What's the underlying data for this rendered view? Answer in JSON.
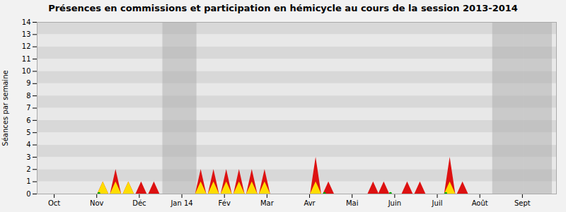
{
  "chart_data": {
    "type": "area",
    "title": "Présences en commissions et participation en hémicycle au cours de la session 2013-2014",
    "ylabel": "Séances par semaine",
    "xlim": [
      -0.4,
      11.8
    ],
    "xticks": [
      {
        "value": 0,
        "label": "Oct"
      },
      {
        "value": 1,
        "label": "Nov"
      },
      {
        "value": 2,
        "label": "Déc"
      },
      {
        "value": 3,
        "label": "Jan 14"
      },
      {
        "value": 4,
        "label": "Fév"
      },
      {
        "value": 5,
        "label": "Mar"
      },
      {
        "value": 6,
        "label": "Avr"
      },
      {
        "value": 7,
        "label": "Mai"
      },
      {
        "value": 8,
        "label": "Juin"
      },
      {
        "value": 9,
        "label": "Juil"
      },
      {
        "value": 10,
        "label": "Août"
      },
      {
        "value": 11,
        "label": "Sept"
      }
    ],
    "ylim": [
      0,
      14
    ],
    "yticks": [
      0,
      1,
      2,
      3,
      4,
      5,
      6,
      7,
      8,
      9,
      10,
      11,
      12,
      13,
      14
    ],
    "grid": false,
    "x": [
      1.15,
      1.45,
      1.75,
      2.05,
      2.35,
      3.45,
      3.75,
      4.05,
      4.35,
      4.65,
      4.95,
      6.15,
      6.45,
      7.5,
      7.75,
      8.3,
      8.6,
      9.3,
      9.6
    ],
    "series": [
      {
        "color": "#dd1111",
        "values": [
          1,
          2,
          1,
          1,
          1,
          2,
          2,
          2,
          2,
          2,
          2,
          3,
          1,
          1,
          1,
          1,
          1,
          3,
          1
        ]
      },
      {
        "color": "#ffdd00",
        "values": [
          1,
          1,
          1,
          0,
          0,
          1,
          1,
          1,
          1,
          1,
          1,
          1,
          0,
          0,
          0,
          0,
          0,
          1,
          0
        ]
      }
    ],
    "points": {
      "color": "#00aa00",
      "x": [
        1.05,
        6.35,
        7.9,
        9.2
      ],
      "values": [
        0.05,
        0.05,
        0.05,
        0.05
      ]
    },
    "bands": [
      {
        "x_start": 2.55,
        "x_end": 3.35
      },
      {
        "x_start": 10.3,
        "x_end": 11.05
      },
      {
        "x_start": 11.05,
        "x_end": 11.7
      }
    ],
    "band_color": "#b0b0b0",
    "hlines": [
      14
    ],
    "background_color": "#f2f2f2",
    "stripe_colors": [
      "#e8e8e8",
      "#d8d8d8"
    ]
  }
}
